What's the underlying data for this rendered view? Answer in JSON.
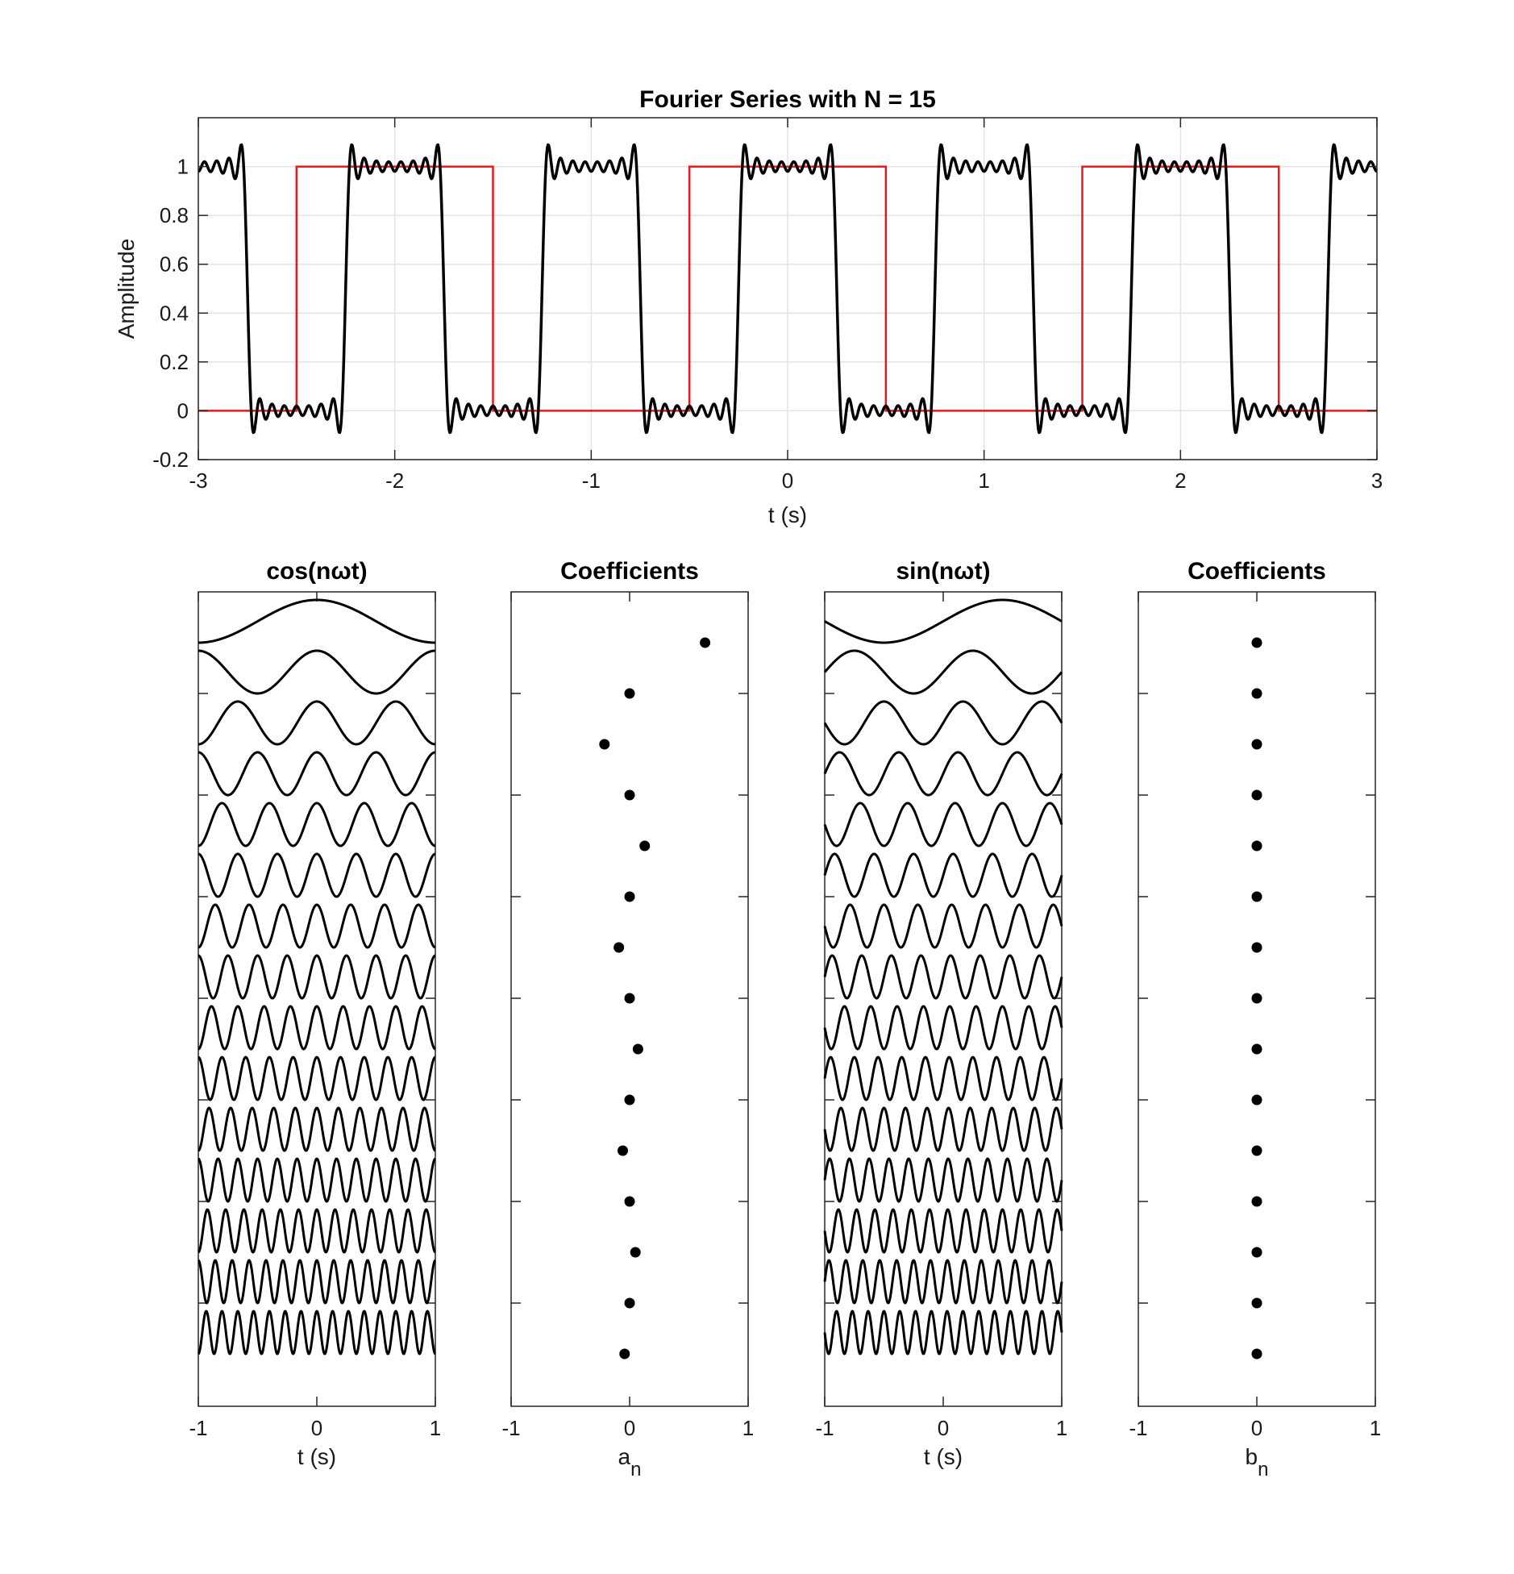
{
  "chart_data": [
    {
      "id": "series",
      "type": "line",
      "title": "Fourier Series with N = 15",
      "xlabel": "t (s)",
      "ylabel": "Amplitude",
      "xlim": [
        -3,
        3
      ],
      "ylim": [
        -0.2,
        1.2
      ],
      "xticks": [
        -3,
        -2,
        -1,
        0,
        1,
        2,
        3
      ],
      "xtick_labels": [
        "-3",
        "-2",
        "-1",
        "0",
        "1",
        "2",
        "3"
      ],
      "yticks": [
        -0.2,
        0,
        0.2,
        0.4,
        0.6,
        0.8,
        1
      ],
      "ytick_labels": [
        "-0.2",
        "0",
        "0.2",
        "0.4",
        "0.6",
        "0.8",
        "1"
      ],
      "grid": true,
      "square_wave": {
        "color": "#e41a1c",
        "x": [
          -3,
          -2.5,
          -2.5,
          -1.5,
          -1.5,
          -0.5,
          -0.5,
          0.5,
          0.5,
          1.5,
          1.5,
          2.5,
          2.5,
          3
        ],
        "y": [
          0,
          0,
          1,
          1,
          0,
          0,
          1,
          1,
          0,
          0,
          1,
          1,
          0,
          0
        ]
      },
      "fourier_approximation": {
        "color": "#000000",
        "N": 15,
        "a0": 0.5,
        "omega": 6.283185307,
        "a": [
          0.6366,
          0,
          -0.2122,
          0,
          0.1273,
          0,
          -0.0909,
          0,
          0.0707,
          0,
          -0.0579,
          0,
          0.049,
          0,
          -0.0424
        ],
        "b": [
          0,
          0,
          0,
          0,
          0,
          0,
          0,
          0,
          0,
          0,
          0,
          0,
          0,
          0,
          0
        ]
      }
    },
    {
      "id": "cos_basis",
      "type": "line",
      "title": "cos(nωt)",
      "xlabel": "t (s)",
      "xlim": [
        -1,
        1
      ],
      "xticks": [
        -1,
        0,
        1
      ],
      "xtick_labels": [
        "-1",
        "0",
        "1"
      ],
      "function": "cos",
      "n": [
        1,
        2,
        3,
        4,
        5,
        6,
        7,
        8,
        9,
        10,
        11,
        12,
        13,
        14,
        15
      ]
    },
    {
      "id": "a_coeffs",
      "type": "scatter",
      "title": "Coefficients",
      "xlabel": "a",
      "xlabel_subscript": "n",
      "xlim": [
        -1,
        1
      ],
      "xticks": [
        -1,
        0,
        1
      ],
      "xtick_labels": [
        "-1",
        "0",
        "1"
      ],
      "n": [
        1,
        2,
        3,
        4,
        5,
        6,
        7,
        8,
        9,
        10,
        11,
        12,
        13,
        14,
        15
      ],
      "values": [
        0.6366,
        0,
        -0.2122,
        0,
        0.1273,
        0,
        -0.0909,
        0,
        0.0707,
        0,
        -0.0579,
        0,
        0.049,
        0,
        -0.0424
      ]
    },
    {
      "id": "sin_basis",
      "type": "line",
      "title": "sin(nωt)",
      "xlabel": "t (s)",
      "xlim": [
        -1,
        1
      ],
      "xticks": [
        -1,
        0,
        1
      ],
      "xtick_labels": [
        "-1",
        "0",
        "1"
      ],
      "function": "sin",
      "n": [
        1,
        2,
        3,
        4,
        5,
        6,
        7,
        8,
        9,
        10,
        11,
        12,
        13,
        14,
        15
      ]
    },
    {
      "id": "b_coeffs",
      "type": "scatter",
      "title": "Coefficients",
      "xlabel": "b",
      "xlabel_subscript": "n",
      "xlim": [
        -1,
        1
      ],
      "xticks": [
        -1,
        0,
        1
      ],
      "xtick_labels": [
        "-1",
        "0",
        "1"
      ],
      "n": [
        1,
        2,
        3,
        4,
        5,
        6,
        7,
        8,
        9,
        10,
        11,
        12,
        13,
        14,
        15
      ],
      "values": [
        0,
        0,
        0,
        0,
        0,
        0,
        0,
        0,
        0,
        0,
        0,
        0,
        0,
        0,
        0
      ]
    }
  ]
}
